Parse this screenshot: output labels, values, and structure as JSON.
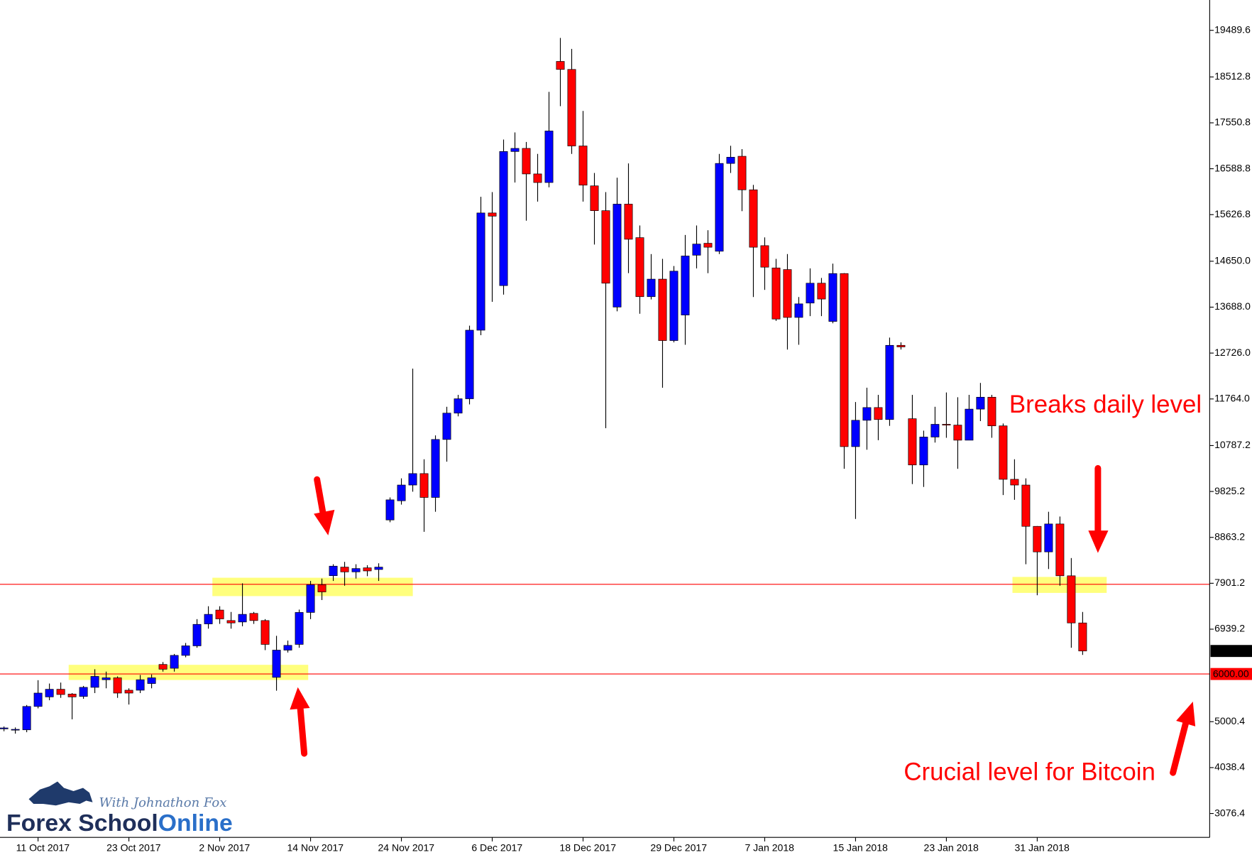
{
  "chart_data": {
    "type": "candlestick",
    "categories": [
      null,
      null,
      null,
      "11 Oct 2017",
      null,
      null,
      null,
      null,
      null,
      null,
      null,
      "23 Oct 2017",
      null,
      null,
      null,
      null,
      null,
      null,
      null,
      "2 Nov 2017",
      null,
      null,
      null,
      null,
      null,
      null,
      null,
      "14 Nov 2017",
      null,
      null,
      null,
      null,
      null,
      null,
      null,
      "24 Nov 2017",
      null,
      null,
      null,
      null,
      null,
      null,
      null,
      "6 Dec 2017",
      null,
      null,
      null,
      null,
      null,
      null,
      null,
      "18 Dec 2017",
      null,
      null,
      null,
      null,
      null,
      null,
      null,
      "29 Dec 2017",
      null,
      null,
      null,
      null,
      null,
      null,
      null,
      "7 Jan 2018",
      null,
      null,
      null,
      null,
      null,
      null,
      null,
      "15 Jan 2018",
      null,
      null,
      null,
      null,
      null,
      null,
      null,
      "23 Jan 2018",
      null,
      null,
      null,
      null,
      null,
      null,
      null,
      "31 Jan 2018",
      null,
      null,
      null,
      null
    ],
    "open": [
      4850,
      4830,
      4830,
      5320,
      5520,
      5680,
      5580,
      5530,
      5720,
      5880,
      5920,
      5660,
      5660,
      5800,
      6200,
      6120,
      6390,
      6590,
      7050,
      7340,
      7120,
      7090,
      7270,
      7120,
      5930,
      6500,
      6620,
      7290,
      7870,
      8060,
      8240,
      8140,
      8225,
      8190,
      9228,
      9630,
      9960,
      10200,
      9700,
      10915,
      11467,
      11768,
      13205,
      15662,
      14140,
      16950,
      17015,
      16480,
      16300,
      18838,
      18670,
      17066,
      16230,
      15710,
      13690,
      15847,
      15145,
      13908,
      14275,
      12988,
      13523,
      14777,
      15027,
      14860,
      16700,
      16850,
      16147,
      14977,
      14510,
      14476,
      13473,
      13774,
      14190,
      13389,
      14392,
      10765,
      11317,
      11584,
      11333,
      12888,
      11350,
      10381,
      10966,
      11233,
      11216,
      10900,
      11551,
      11801,
      11200,
      10080,
      9960,
      9094,
      8559,
      9144,
      8058,
      7070
    ],
    "high": [
      4900,
      4880,
      5350,
      5870,
      5800,
      5820,
      5600,
      5750,
      6100,
      6050,
      5950,
      5700,
      5980,
      5990,
      6250,
      6420,
      6650,
      7150,
      7420,
      7420,
      7300,
      7900,
      7300,
      7150,
      6800,
      6700,
      7350,
      7950,
      8000,
      8300,
      8350,
      8300,
      8280,
      8320,
      9700,
      10100,
      12400,
      10500,
      11000,
      11600,
      11850,
      13300,
      16000,
      16100,
      17200,
      17350,
      17150,
      16900,
      18200,
      19330,
      19100,
      17800,
      16500,
      16100,
      16400,
      16700,
      15400,
      14800,
      14700,
      14550,
      15200,
      15400,
      15300,
      16900,
      17070,
      17000,
      16250,
      15150,
      14700,
      14800,
      13900,
      14500,
      14300,
      14600,
      14400,
      11700,
      12000,
      11850,
      13050,
      12950,
      11850,
      11100,
      11600,
      11900,
      11800,
      11850,
      12100,
      11850,
      11250,
      10500,
      10100,
      9100,
      9400,
      9300,
      8430,
      7300
    ],
    "low": [
      4800,
      4750,
      4780,
      5280,
      5450,
      5500,
      5050,
      5480,
      5600,
      5700,
      5500,
      5360,
      5600,
      5700,
      6050,
      6050,
      6350,
      6550,
      6950,
      7050,
      6950,
      7000,
      7050,
      6500,
      5650,
      6450,
      6550,
      7150,
      7550,
      7950,
      7850,
      8000,
      8050,
      7950,
      9180,
      9550,
      9820,
      8980,
      9400,
      10450,
      11400,
      11650,
      13100,
      13800,
      13950,
      16300,
      15500,
      15900,
      16200,
      17900,
      16900,
      15900,
      15000,
      11150,
      13600,
      14400,
      13550,
      13850,
      12000,
      12950,
      12900,
      14500,
      14400,
      14800,
      16500,
      15700,
      13900,
      14050,
      13400,
      12800,
      12900,
      13500,
      13500,
      13350,
      10300,
      9250,
      10700,
      10900,
      11200,
      12800,
      9980,
      9920,
      10850,
      10950,
      10300,
      10950,
      11300,
      10950,
      9750,
      9650,
      8300,
      7650,
      8200,
      7850,
      6550,
      6400
    ],
    "close": [
      4870,
      4840,
      5320,
      5600,
      5680,
      5570,
      5520,
      5720,
      5950,
      5920,
      5600,
      5600,
      5880,
      5920,
      6100,
      6390,
      6590,
      7040,
      7250,
      7155,
      7070,
      7250,
      7120,
      6620,
      6500,
      6600,
      7290,
      7870,
      7720,
      8260,
      8140,
      8210,
      8160,
      8240,
      9650,
      9960,
      10200,
      9700,
      10915,
      11467,
      11768,
      13205,
      15662,
      15595,
      16950,
      17015,
      16480,
      16300,
      17380,
      18670,
      17066,
      16245,
      15710,
      14190,
      15847,
      15111,
      13908,
      14275,
      12988,
      14442,
      14760,
      15010,
      14944,
      16700,
      16830,
      16147,
      14944,
      14526,
      13439,
      13473,
      13757,
      14190,
      13858,
      14392,
      10765,
      11317,
      11584,
      11333,
      12888,
      12855,
      10381,
      10966,
      11233,
      11216,
      10900,
      11551,
      11801,
      11200,
      10080,
      9960,
      9094,
      8559,
      9144,
      8058,
      7070,
      6482
    ],
    "up_color": "#0000ff",
    "down_color": "#ff0000",
    "ylim": [
      2575,
      20125
    ],
    "yticks": [
      19489.6,
      18512.8,
      17550.8,
      16588.8,
      15626.8,
      {
        "value": 14650,
        "label": "14650.0"
      },
      {
        "value": 13688,
        "label": "13688.0"
      },
      {
        "value": 12726,
        "label": "12726.0"
      },
      {
        "value": 11764,
        "label": "11764.0"
      },
      10787.2,
      9825.2,
      8863.2,
      7901.2,
      6939.2,
      5000.4,
      4038.4,
      3076.4
    ],
    "last_price": 6482.29,
    "levels": [
      {
        "value": 7880,
        "color": "#ff0000"
      },
      {
        "value": 6000,
        "label": "6000.00",
        "color": "#ff0000"
      }
    ],
    "annotations": [
      "Breaks daily level",
      "Crucial level for Bitcoin"
    ]
  },
  "logo": {
    "brand": "Forex School",
    "brand_accent": "Online",
    "tagline": "With Johnathon Fox"
  }
}
